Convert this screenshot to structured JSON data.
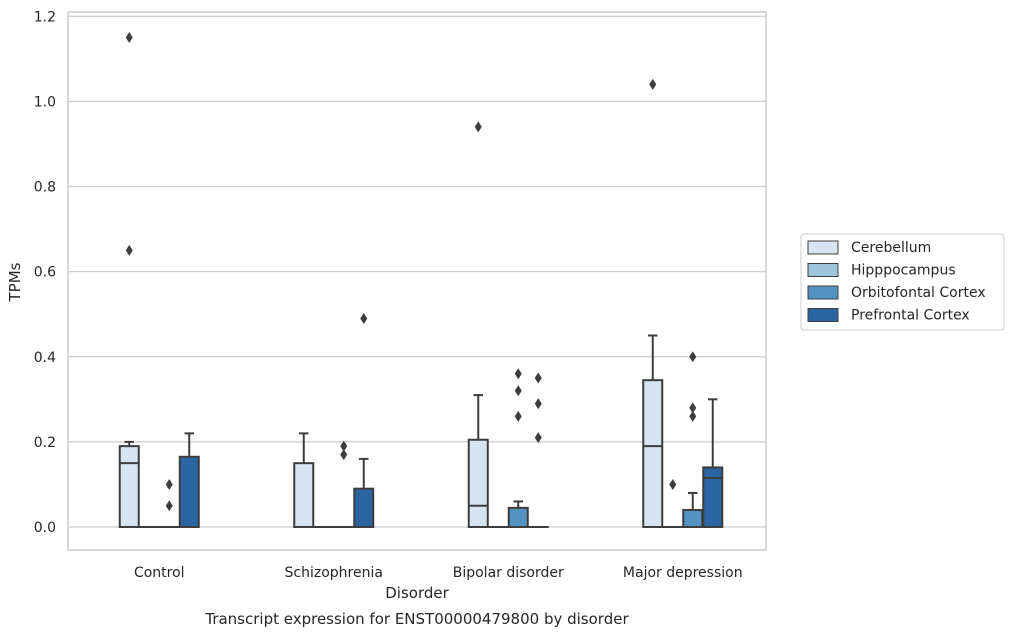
{
  "chart_data": {
    "type": "box",
    "xlabel": "Disorder",
    "ylabel": "TPMs",
    "caption": "Transcript expression for ENST00000479800 by disorder",
    "categories": [
      "Control",
      "Schizophrenia",
      "Bipolar disorder",
      "Major depression"
    ],
    "ylim": [
      -0.055,
      1.21
    ],
    "yticks": [
      0.0,
      0.2,
      0.4,
      0.6,
      0.8,
      1.0,
      1.2
    ],
    "ytick_labels": [
      "0.0",
      "0.2",
      "0.4",
      "0.6",
      "0.8",
      "1.0",
      "1.2"
    ],
    "grid": "horizontal",
    "legend_position": "right",
    "series": [
      {
        "name": "Cerebellum",
        "color": "#d7e5f3",
        "boxes": [
          {
            "q1": 0.0,
            "median": 0.15,
            "q3": 0.19,
            "whislo": 0.0,
            "whishi": 0.2,
            "fliers": [
              1.15,
              0.65
            ]
          },
          {
            "q1": 0.0,
            "median": 0.0,
            "q3": 0.15,
            "whislo": 0.0,
            "whishi": 0.22,
            "fliers": []
          },
          {
            "q1": 0.0,
            "median": 0.05,
            "q3": 0.205,
            "whislo": 0.0,
            "whishi": 0.31,
            "fliers": [
              0.94
            ]
          },
          {
            "q1": 0.0,
            "median": 0.19,
            "q3": 0.345,
            "whislo": 0.0,
            "whishi": 0.45,
            "fliers": [
              1.04
            ]
          }
        ]
      },
      {
        "name": "Hipppocampus",
        "color": "#9fc5db",
        "boxes": [
          {
            "q1": 0.0,
            "median": 0.0,
            "q3": 0.0,
            "whislo": 0.0,
            "whishi": 0.0,
            "fliers": []
          },
          {
            "q1": 0.0,
            "median": 0.0,
            "q3": 0.0,
            "whislo": 0.0,
            "whishi": 0.0,
            "fliers": []
          },
          {
            "q1": 0.0,
            "median": 0.0,
            "q3": 0.0,
            "whislo": 0.0,
            "whishi": 0.0,
            "fliers": []
          },
          {
            "q1": 0.0,
            "median": 0.0,
            "q3": 0.0,
            "whislo": 0.0,
            "whishi": 0.0,
            "fliers": [
              0.1
            ]
          }
        ]
      },
      {
        "name": "Orbitofontal Cortex",
        "color": "#5393c2",
        "boxes": [
          {
            "q1": 0.0,
            "median": 0.0,
            "q3": 0.0,
            "whislo": 0.0,
            "whishi": 0.0,
            "fliers": [
              0.1,
              0.05
            ]
          },
          {
            "q1": 0.0,
            "median": 0.0,
            "q3": 0.0,
            "whislo": 0.0,
            "whishi": 0.0,
            "fliers": [
              0.19,
              0.17
            ]
          },
          {
            "q1": 0.0,
            "median": 0.0,
            "q3": 0.045,
            "whislo": 0.0,
            "whishi": 0.06,
            "fliers": [
              0.36,
              0.32,
              0.26
            ]
          },
          {
            "q1": 0.0,
            "median": 0.0,
            "q3": 0.04,
            "whislo": 0.0,
            "whishi": 0.08,
            "fliers": [
              0.4,
              0.28,
              0.26
            ]
          }
        ]
      },
      {
        "name": "Prefrontal Cortex",
        "color": "#2a65a1",
        "boxes": [
          {
            "q1": 0.0,
            "median": 0.0,
            "q3": 0.165,
            "whislo": 0.0,
            "whishi": 0.22,
            "fliers": []
          },
          {
            "q1": 0.0,
            "median": 0.0,
            "q3": 0.09,
            "whislo": 0.0,
            "whishi": 0.16,
            "fliers": [
              0.49
            ]
          },
          {
            "q1": 0.0,
            "median": 0.0,
            "q3": 0.0,
            "whislo": 0.0,
            "whishi": 0.0,
            "fliers": [
              0.35,
              0.29,
              0.21
            ]
          },
          {
            "q1": 0.0,
            "median": 0.115,
            "q3": 0.14,
            "whislo": 0.0,
            "whishi": 0.3,
            "fliers": []
          }
        ]
      }
    ]
  }
}
